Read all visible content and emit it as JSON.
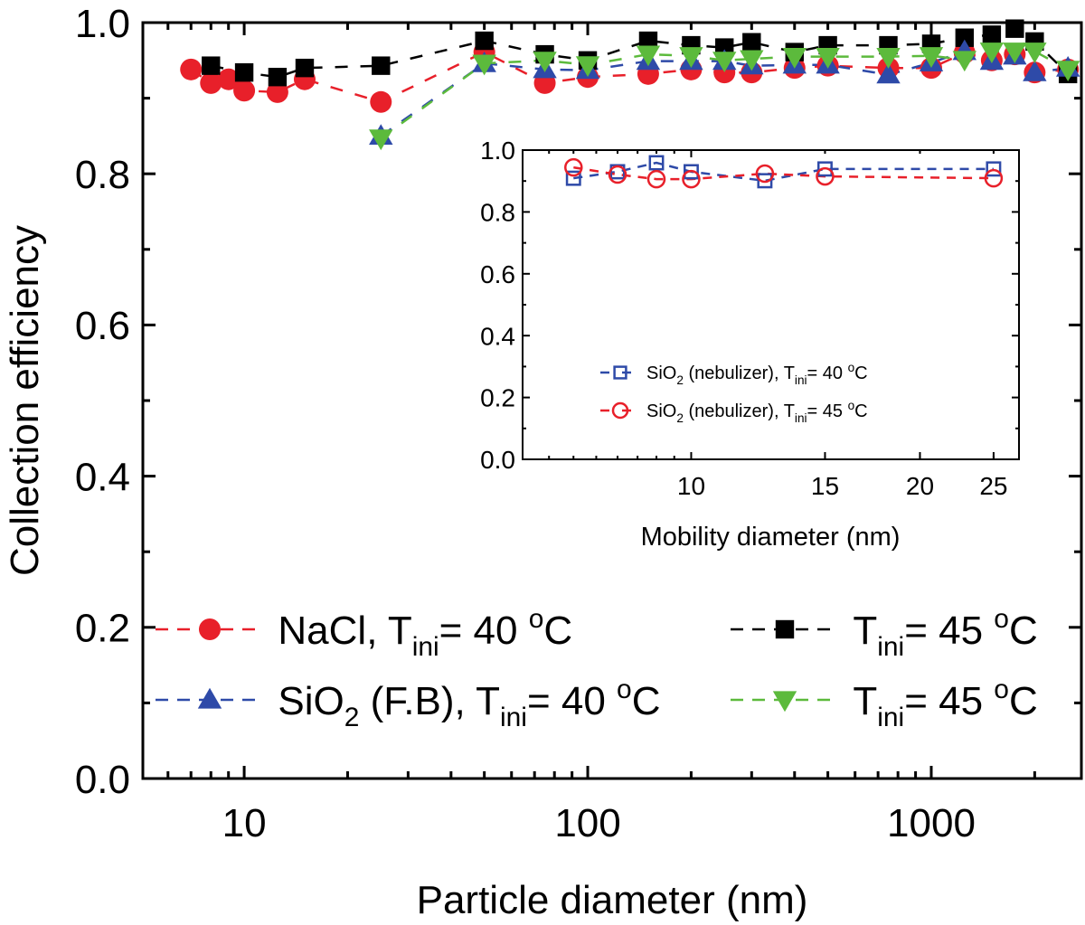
{
  "chart_data": [
    {
      "id": "main",
      "type": "line",
      "xscale": "log",
      "xlabel": "Particle diameter (nm)",
      "ylabel": "Collection efficiency",
      "xlim": [
        5.07,
        2735
      ],
      "ylim": [
        0.0,
        1.0
      ],
      "xticks": [
        10,
        100,
        1000
      ],
      "xtick_labels": [
        "10",
        "100",
        "1000"
      ],
      "yticks": [
        0.0,
        0.2,
        0.4,
        0.6,
        0.8,
        1.0
      ],
      "ytick_labels": [
        "0.0",
        "0.2",
        "0.4",
        "0.6",
        "0.8",
        "1.0"
      ],
      "grid": false,
      "legend_position": "lower",
      "series": [
        {
          "name": "NaCl, T_ini = 40 °C",
          "legend": {
            "main": "NaCl, T",
            "sub": "ini",
            "rest": "= 40 ",
            "sup": "o",
            "unit": "C"
          },
          "color": "#e8202a",
          "marker": "circle",
          "line": "dashed",
          "x": [
            7,
            8,
            9,
            10,
            12.5,
            15,
            25,
            50,
            75,
            100,
            150,
            200,
            250,
            300,
            400,
            500,
            750,
            1000,
            1250,
            1500,
            1750,
            2000,
            2500
          ],
          "y": [
            0.938,
            0.92,
            0.925,
            0.91,
            0.908,
            0.925,
            0.895,
            0.961,
            0.92,
            0.928,
            0.932,
            0.938,
            0.934,
            0.934,
            0.94,
            0.943,
            0.94,
            0.94,
            0.96,
            0.95,
            0.958,
            0.934,
            0.938
          ]
        },
        {
          "name": "T_ini = 45 °C (NaCl)",
          "legend": {
            "main": "T",
            "sub": "ini",
            "rest": "= 45 ",
            "sup": "o",
            "unit": "C"
          },
          "color": "#000000",
          "marker": "square",
          "line": "dashed",
          "x": [
            8,
            10,
            12.5,
            15,
            25,
            50,
            75,
            100,
            150,
            200,
            250,
            300,
            400,
            500,
            750,
            1000,
            1250,
            1500,
            1750,
            2000,
            2500
          ],
          "y": [
            0.943,
            0.934,
            0.928,
            0.94,
            0.943,
            0.976,
            0.958,
            0.95,
            0.976,
            0.97,
            0.967,
            0.974,
            0.961,
            0.97,
            0.97,
            0.972,
            0.98,
            0.984,
            0.992,
            0.975,
            0.932
          ]
        },
        {
          "name": "SiO2 (F.B), T_ini = 40 °C",
          "legend": {
            "main": "SiO",
            "sub0": "2",
            "main2": " (F.B), T",
            "sub": "ini",
            "rest": "= 40 ",
            "sup": "o",
            "unit": "C"
          },
          "color": "#2e4aa8",
          "marker": "triangle-up",
          "line": "dashed",
          "x": [
            25,
            50,
            75,
            100,
            150,
            200,
            250,
            300,
            400,
            500,
            750,
            1000,
            1250,
            1500,
            1750,
            2000,
            2500
          ],
          "y": [
            0.85,
            0.946,
            0.938,
            0.937,
            0.949,
            0.949,
            0.949,
            0.943,
            0.944,
            0.944,
            0.931,
            0.947,
            0.962,
            0.949,
            0.956,
            0.934,
            0.94
          ]
        },
        {
          "name": "T_ini = 45 °C (SiO2 F.B)",
          "legend": {
            "main": "T",
            "sub": "ini",
            "rest": "= 45 ",
            "sup": "o",
            "unit": "C"
          },
          "color": "#5cba3c",
          "marker": "triangle-down",
          "line": "dashed",
          "x": [
            25,
            50,
            75,
            100,
            150,
            200,
            250,
            300,
            400,
            500,
            750,
            1000,
            1250,
            1500,
            1750,
            2000,
            2500
          ],
          "y": [
            0.847,
            0.946,
            0.95,
            0.944,
            0.958,
            0.956,
            0.95,
            0.952,
            0.955,
            0.955,
            0.955,
            0.956,
            0.951,
            0.962,
            0.962,
            0.962,
            0.938
          ]
        }
      ]
    },
    {
      "id": "inset",
      "type": "line",
      "xscale": "log",
      "xlabel": "Mobility diameter (nm)",
      "ylabel": "",
      "xlim": [
        6,
        27
      ],
      "ylim": [
        0.0,
        1.0
      ],
      "xticks": [
        10,
        15,
        20,
        25
      ],
      "xtick_labels": [
        "10",
        "15",
        "20",
        "25"
      ],
      "yticks": [
        0.0,
        0.2,
        0.4,
        0.6,
        0.8,
        1.0
      ],
      "ytick_labels": [
        "0.0",
        "0.2",
        "0.4",
        "0.6",
        "0.8",
        "1.0"
      ],
      "grid": false,
      "legend_position": "lower-center",
      "series": [
        {
          "name": "SiO2 (nebulizer), T_ini = 40 °C",
          "legend": {
            "main": "SiO",
            "sub0": "2",
            "main2": " (nebulizer), T",
            "sub": "ini",
            "rest": "= 40 ",
            "sup": "o",
            "unit": "C"
          },
          "color": "#2e4aa8",
          "marker": "square-open",
          "line": "dashed",
          "x": [
            7,
            8,
            9,
            10,
            12.5,
            15,
            25
          ],
          "y": [
            0.909,
            0.93,
            0.959,
            0.93,
            0.901,
            0.939,
            0.939
          ]
        },
        {
          "name": "SiO2 (nebulizer), T_ini = 45 °C",
          "legend": {
            "main": "SiO",
            "sub0": "2",
            "main2": " (nebulizer), T",
            "sub": "ini",
            "rest": "= 45 ",
            "sup": "o",
            "unit": "C"
          },
          "color": "#e8202a",
          "marker": "circle-open",
          "line": "dashed",
          "x": [
            7,
            8,
            9,
            10,
            12.5,
            15,
            25
          ],
          "y": [
            0.944,
            0.921,
            0.906,
            0.906,
            0.924,
            0.915,
            0.909
          ]
        }
      ]
    }
  ]
}
